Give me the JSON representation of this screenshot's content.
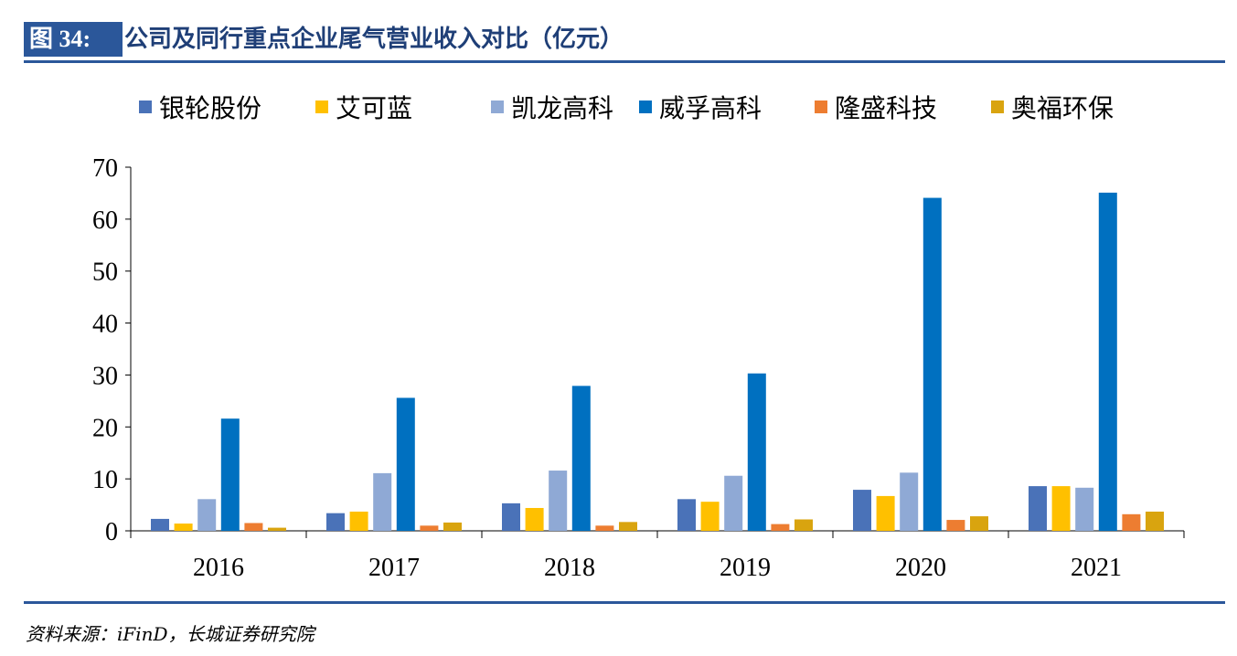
{
  "header": {
    "figure_tag": "图 34:",
    "title": "公司及同行重点企业尾气营业收入对比（亿元）"
  },
  "source": "资料来源：iFinD，长城证券研究院",
  "chart_data": {
    "type": "bar",
    "categories": [
      "2016",
      "2017",
      "2018",
      "2019",
      "2020",
      "2021"
    ],
    "series": [
      {
        "name": "银轮股份",
        "color": "#4a72b8",
        "values": [
          2.3,
          3.4,
          5.3,
          6.1,
          7.9,
          8.6
        ]
      },
      {
        "name": "艾可蓝",
        "color": "#ffc000",
        "values": [
          1.4,
          3.7,
          4.4,
          5.6,
          6.7,
          8.6
        ]
      },
      {
        "name": "凯龙高科",
        "color": "#8fa9d5",
        "values": [
          6.1,
          11.1,
          11.6,
          10.6,
          11.2,
          8.3
        ]
      },
      {
        "name": "威孚高科",
        "color": "#0070c0",
        "values": [
          21.6,
          25.6,
          27.9,
          30.3,
          64.1,
          65.1
        ]
      },
      {
        "name": "隆盛科技",
        "color": "#ed7d31",
        "values": [
          1.5,
          1.0,
          1.0,
          1.3,
          2.1,
          3.2
        ]
      },
      {
        "name": "奥福环保",
        "color": "#d9a40f",
        "values": [
          0.6,
          1.6,
          1.7,
          2.2,
          2.8,
          3.7
        ]
      }
    ],
    "ylim": [
      0,
      70
    ],
    "yticks": [
      0,
      10,
      20,
      30,
      40,
      50,
      60,
      70
    ],
    "legend_position": "top",
    "grid": false
  }
}
